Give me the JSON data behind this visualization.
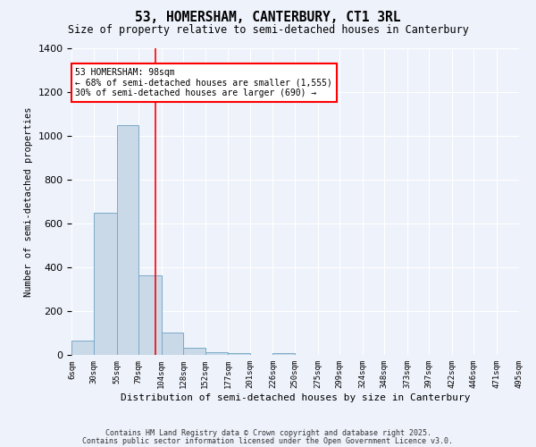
{
  "title": "53, HOMERSHAM, CANTERBURY, CT1 3RL",
  "subtitle": "Size of property relative to semi-detached houses in Canterbury",
  "xlabel": "Distribution of semi-detached houses by size in Canterbury",
  "ylabel": "Number of semi-detached properties",
  "bar_color": "#c9d9e8",
  "bar_edge_color": "#7aaac8",
  "background_color": "#eef2fb",
  "grid_color": "white",
  "annotation_text": "53 HOMERSHAM: 98sqm\n← 68% of semi-detached houses are smaller (1,555)\n30% of semi-detached houses are larger (690) →",
  "red_line_x": 98,
  "categories": [
    "6sqm",
    "30sqm",
    "55sqm",
    "79sqm",
    "104sqm",
    "128sqm",
    "152sqm",
    "177sqm",
    "201sqm",
    "226sqm",
    "250sqm",
    "275sqm",
    "299sqm",
    "324sqm",
    "348sqm",
    "373sqm",
    "397sqm",
    "422sqm",
    "446sqm",
    "471sqm",
    "495sqm"
  ],
  "bin_edges": [
    6,
    30,
    55,
    79,
    104,
    128,
    152,
    177,
    201,
    226,
    250,
    275,
    299,
    324,
    348,
    373,
    397,
    422,
    446,
    471,
    495
  ],
  "values": [
    65,
    650,
    1050,
    365,
    105,
    35,
    15,
    10,
    0,
    10,
    0,
    0,
    0,
    0,
    0,
    0,
    0,
    0,
    0,
    0
  ],
  "ylim": [
    0,
    1400
  ],
  "yticks": [
    0,
    200,
    400,
    600,
    800,
    1000,
    1200,
    1400
  ],
  "footer_line1": "Contains HM Land Registry data © Crown copyright and database right 2025.",
  "footer_line2": "Contains public sector information licensed under the Open Government Licence v3.0."
}
